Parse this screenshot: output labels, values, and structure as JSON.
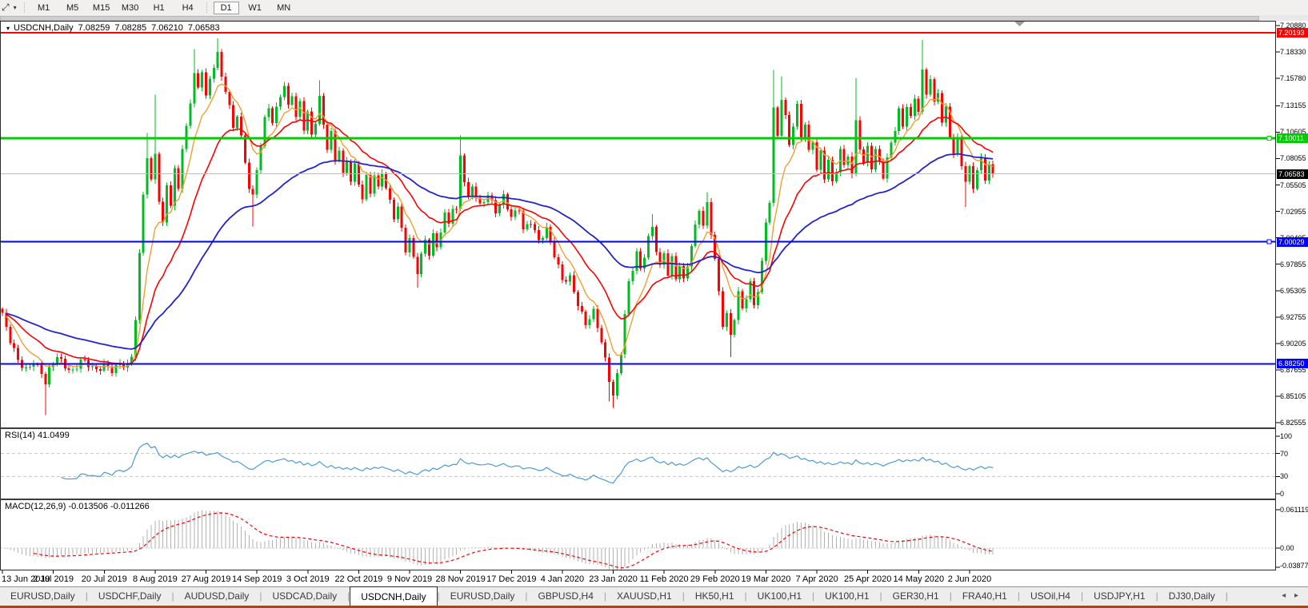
{
  "icons": {
    "tool": "⤢",
    "dropdown": "▾",
    "title_marker": "▾",
    "tab_prev": "◂",
    "tab_next": "▸"
  },
  "toolbar": {
    "timeframes": [
      {
        "label": "M1",
        "active": false
      },
      {
        "label": "M5",
        "active": false
      },
      {
        "label": "M15",
        "active": false
      },
      {
        "label": "M30",
        "active": false
      },
      {
        "label": "H1",
        "active": false
      },
      {
        "label": "H4",
        "active": false
      },
      {
        "label": "D1",
        "active": true,
        "group_start": true
      },
      {
        "label": "W1",
        "active": false
      },
      {
        "label": "MN",
        "active": false
      }
    ]
  },
  "chart_header": {
    "symbol_title": "USDCNH,Daily",
    "open": "7.08259",
    "high": "7.08285",
    "low": "7.06210",
    "close": "7.06583"
  },
  "price_axis": {
    "ticks": [
      "7.20880",
      "7.18330",
      "7.15780",
      "7.13155",
      "7.10605",
      "7.08055",
      "7.05505",
      "7.02955",
      "7.00405",
      "6.97855",
      "6.95305",
      "6.92755",
      "6.90205",
      "6.87655",
      "6.85105",
      "6.82555"
    ]
  },
  "price_tags": [
    {
      "label": "7.20193",
      "bg": "#ff0000"
    },
    {
      "label": "7.10011",
      "bg": "#00cc00"
    },
    {
      "label": "7.06583",
      "bg": "#000000"
    },
    {
      "label": "7.00029",
      "bg": "#0000ff"
    },
    {
      "label": "6.88250",
      "bg": "#0000ff"
    }
  ],
  "hlines": [
    {
      "price": 7.20193,
      "color": "#ff0000",
      "w": 2,
      "handle": false
    },
    {
      "price": 7.10011,
      "color": "#00cc00",
      "w": 3,
      "handle": true
    },
    {
      "price": 7.06583,
      "color": "#bdbdbd",
      "w": 1,
      "handle": false
    },
    {
      "price": 7.00029,
      "color": "#0000ff",
      "w": 2,
      "handle": true
    },
    {
      "price": 6.8825,
      "color": "#0000ff",
      "w": 2,
      "handle": false
    }
  ],
  "rsi_pane": {
    "label": "RSI(14) 41.0499",
    "line_color": "#4d9ad9",
    "level_color": "#c4c4c4",
    "axis": [
      {
        "label": "100",
        "value": 100
      },
      {
        "label": "70",
        "value": 70
      },
      {
        "label": "30",
        "value": 30
      },
      {
        "label": "0",
        "value": 0
      }
    ],
    "levels": [
      70,
      30
    ]
  },
  "macd_pane": {
    "label": "MACD(12,26,9) -0.013506 -0.011266",
    "hist_color": "#b2b2b2",
    "signal_color": "#ff0000",
    "axis": [
      {
        "label": "0.061119",
        "value": 0.061119
      },
      {
        "label": "0.00",
        "value": 0
      },
      {
        "label": "-0.03877",
        "value": -0.03877
      }
    ]
  },
  "date_axis": {
    "labels": [
      "13 Jun 2019",
      "2 Jul 2019",
      "20 Jul 2019",
      "8 Aug 2019",
      "27 Aug 2019",
      "14 Sep 2019",
      "3 Oct 2019",
      "22 Oct 2019",
      "9 Nov 2019",
      "28 Nov 2019",
      "17 Dec 2019",
      "4 Jan 2020",
      "23 Jan 2020",
      "11 Feb 2020",
      "29 Feb 2020",
      "19 Mar 2020",
      "7 Apr 2020",
      "25 Apr 2020",
      "14 May 2020",
      "2 Jun 2020"
    ]
  },
  "tabs": {
    "separator": "|",
    "items": [
      {
        "label": "EURUSD,Daily",
        "active": false
      },
      {
        "label": "USDCHF,Daily",
        "active": false
      },
      {
        "label": "AUDUSD,Daily",
        "active": false
      },
      {
        "label": "USDCAD,Daily",
        "active": false
      },
      {
        "label": "USDCNH,Daily",
        "active": true
      },
      {
        "label": "EURUSD,Daily",
        "active": false
      },
      {
        "label": "GBPUSD,H4",
        "active": false
      },
      {
        "label": "XAUUSD,H1",
        "active": false
      },
      {
        "label": "HK50,H1",
        "active": false
      },
      {
        "label": "UK100,H1",
        "active": false
      },
      {
        "label": "UK100,H1",
        "active": false
      },
      {
        "label": "GER30,H1",
        "active": false
      },
      {
        "label": "FRA40,H1",
        "active": false
      },
      {
        "label": "USOil,H4",
        "active": false
      },
      {
        "label": "USDJPY,H1",
        "active": false
      },
      {
        "label": "DJ30,Daily",
        "active": false
      }
    ]
  },
  "style": {
    "up_color": "#00bb22",
    "down_color": "#ff0000",
    "pane_border": "#2b2b2b"
  },
  "chart_data": {
    "type": "candlestick",
    "symbol": "USDCNH",
    "timeframe": "Daily",
    "title": "USDCNH,Daily",
    "current_ohlc": {
      "open": 7.08259,
      "high": 7.08285,
      "low": 7.0621,
      "close": 7.06583
    },
    "ylim": [
      6.818,
      7.212
    ],
    "x_range": [
      "13 Jun 2019",
      "12 Jun 2020"
    ],
    "bars": 254,
    "last_close": 7.06583,
    "horizontal_levels": [
      7.20193,
      7.10011,
      7.06583,
      7.00029,
      6.8825
    ],
    "price_waypoints": [
      [
        0,
        6.928
      ],
      [
        2,
        6.905
      ],
      [
        4,
        6.888
      ],
      [
        6,
        6.878
      ],
      [
        8,
        6.884
      ],
      [
        10,
        6.872
      ],
      [
        11,
        6.862
      ],
      [
        12,
        6.875
      ],
      [
        14,
        6.89
      ],
      [
        16,
        6.882
      ],
      [
        18,
        6.876
      ],
      [
        20,
        6.886
      ],
      [
        22,
        6.88
      ],
      [
        24,
        6.874
      ],
      [
        26,
        6.882
      ],
      [
        28,
        6.878
      ],
      [
        30,
        6.884
      ],
      [
        32,
        6.88
      ],
      [
        33,
        6.888
      ],
      [
        34,
        6.925
      ],
      [
        35,
        6.985
      ],
      [
        36,
        7.045
      ],
      [
        37,
        7.082
      ],
      [
        38,
        7.058
      ],
      [
        39,
        7.088
      ],
      [
        40,
        7.042
      ],
      [
        41,
        7.018
      ],
      [
        42,
        7.058
      ],
      [
        43,
        7.036
      ],
      [
        44,
        7.068
      ],
      [
        45,
        7.052
      ],
      [
        46,
        7.088
      ],
      [
        47,
        7.108
      ],
      [
        48,
        7.135
      ],
      [
        49,
        7.162
      ],
      [
        50,
        7.148
      ],
      [
        51,
        7.168
      ],
      [
        52,
        7.142
      ],
      [
        53,
        7.158
      ],
      [
        54,
        7.172
      ],
      [
        55,
        7.182
      ],
      [
        56,
        7.158
      ],
      [
        57,
        7.146
      ],
      [
        58,
        7.128
      ],
      [
        59,
        7.108
      ],
      [
        60,
        7.122
      ],
      [
        61,
        7.1
      ],
      [
        62,
        7.078
      ],
      [
        63,
        7.055
      ],
      [
        64,
        7.045
      ],
      [
        65,
        7.072
      ],
      [
        66,
        7.095
      ],
      [
        67,
        7.118
      ],
      [
        68,
        7.13
      ],
      [
        69,
        7.114
      ],
      [
        70,
        7.126
      ],
      [
        71,
        7.14
      ],
      [
        72,
        7.15
      ],
      [
        73,
        7.13
      ],
      [
        74,
        7.144
      ],
      [
        75,
        7.122
      ],
      [
        76,
        7.136
      ],
      [
        77,
        7.112
      ],
      [
        78,
        7.126
      ],
      [
        79,
        7.102
      ],
      [
        80,
        7.116
      ],
      [
        81,
        7.138
      ],
      [
        82,
        7.11
      ],
      [
        83,
        7.09
      ],
      [
        84,
        7.104
      ],
      [
        85,
        7.078
      ],
      [
        86,
        7.092
      ],
      [
        87,
        7.066
      ],
      [
        88,
        7.08
      ],
      [
        89,
        7.062
      ],
      [
        90,
        7.074
      ],
      [
        91,
        7.056
      ],
      [
        92,
        7.042
      ],
      [
        93,
        7.06
      ],
      [
        94,
        7.046
      ],
      [
        95,
        7.064
      ],
      [
        96,
        7.05
      ],
      [
        97,
        7.068
      ],
      [
        98,
        7.054
      ],
      [
        99,
        7.04
      ],
      [
        100,
        7.026
      ],
      [
        101,
        7.036
      ],
      [
        102,
        7.012
      ],
      [
        103,
        6.992
      ],
      [
        104,
        7.002
      ],
      [
        105,
        6.982
      ],
      [
        106,
        6.97
      ],
      [
        107,
        6.986
      ],
      [
        108,
        7.0
      ],
      [
        109,
        6.99
      ],
      [
        110,
        7.008
      ],
      [
        111,
        6.996
      ],
      [
        112,
        7.014
      ],
      [
        113,
        7.028
      ],
      [
        114,
        7.018
      ],
      [
        115,
        7.034
      ],
      [
        116,
        7.028
      ],
      [
        117,
        7.082
      ],
      [
        118,
        7.058
      ],
      [
        119,
        7.04
      ],
      [
        120,
        7.054
      ],
      [
        122,
        7.036
      ],
      [
        124,
        7.048
      ],
      [
        126,
        7.03
      ],
      [
        128,
        7.042
      ],
      [
        130,
        7.022
      ],
      [
        132,
        7.032
      ],
      [
        133,
        7.012
      ],
      [
        135,
        7.022
      ],
      [
        137,
        7.002
      ],
      [
        139,
        7.012
      ],
      [
        141,
        6.986
      ],
      [
        143,
        6.962
      ],
      [
        145,
        6.966
      ],
      [
        147,
        6.942
      ],
      [
        149,
        6.922
      ],
      [
        151,
        6.932
      ],
      [
        153,
        6.902
      ],
      [
        155,
        6.866
      ],
      [
        156,
        6.852
      ],
      [
        157,
        6.872
      ],
      [
        158,
        6.896
      ],
      [
        159,
        6.932
      ],
      [
        160,
        6.962
      ],
      [
        161,
        6.976
      ],
      [
        162,
        6.99
      ],
      [
        163,
        6.972
      ],
      [
        164,
        6.986
      ],
      [
        165,
        7.002
      ],
      [
        166,
        7.012
      ],
      [
        167,
        6.992
      ],
      [
        168,
        6.976
      ],
      [
        169,
        6.99
      ],
      [
        170,
        6.972
      ],
      [
        171,
        6.986
      ],
      [
        172,
        6.966
      ],
      [
        173,
        6.98
      ],
      [
        174,
        6.962
      ],
      [
        175,
        6.976
      ],
      [
        176,
        6.996
      ],
      [
        177,
        7.012
      ],
      [
        178,
        7.03
      ],
      [
        179,
        7.016
      ],
      [
        180,
        7.036
      ],
      [
        181,
        7.01
      ],
      [
        182,
        6.986
      ],
      [
        183,
        6.952
      ],
      [
        184,
        6.922
      ],
      [
        185,
        6.932
      ],
      [
        186,
        6.908
      ],
      [
        187,
        6.926
      ],
      [
        188,
        6.95
      ],
      [
        189,
        6.932
      ],
      [
        190,
        6.946
      ],
      [
        191,
        6.96
      ],
      [
        192,
        6.938
      ],
      [
        193,
        6.956
      ],
      [
        194,
        6.982
      ],
      [
        195,
        7.02
      ],
      [
        196,
        7.042
      ],
      [
        197,
        7.128
      ],
      [
        198,
        7.102
      ],
      [
        199,
        7.138
      ],
      [
        200,
        7.118
      ],
      [
        201,
        7.092
      ],
      [
        202,
        7.112
      ],
      [
        203,
        7.13
      ],
      [
        204,
        7.102
      ],
      [
        205,
        7.116
      ],
      [
        206,
        7.088
      ],
      [
        207,
        7.1
      ],
      [
        208,
        7.072
      ],
      [
        209,
        7.086
      ],
      [
        210,
        7.062
      ],
      [
        211,
        7.078
      ],
      [
        212,
        7.054
      ],
      [
        213,
        7.068
      ],
      [
        214,
        7.088
      ],
      [
        215,
        7.072
      ],
      [
        216,
        7.086
      ],
      [
        217,
        7.066
      ],
      [
        218,
        7.118
      ],
      [
        219,
        7.094
      ],
      [
        220,
        7.076
      ],
      [
        221,
        7.092
      ],
      [
        222,
        7.072
      ],
      [
        223,
        7.086
      ],
      [
        224,
        7.076
      ],
      [
        225,
        7.062
      ],
      [
        226,
        7.078
      ],
      [
        227,
        7.096
      ],
      [
        228,
        7.11
      ],
      [
        229,
        7.128
      ],
      [
        230,
        7.114
      ],
      [
        231,
        7.134
      ],
      [
        232,
        7.12
      ],
      [
        233,
        7.14
      ],
      [
        234,
        7.126
      ],
      [
        235,
        7.162
      ],
      [
        236,
        7.142
      ],
      [
        237,
        7.156
      ],
      [
        238,
        7.132
      ],
      [
        239,
        7.146
      ],
      [
        240,
        7.116
      ],
      [
        241,
        7.13
      ],
      [
        242,
        7.106
      ],
      [
        243,
        7.086
      ],
      [
        244,
        7.1
      ],
      [
        245,
        7.076
      ],
      [
        246,
        7.056
      ],
      [
        247,
        7.07
      ],
      [
        248,
        7.052
      ],
      [
        249,
        7.066
      ],
      [
        250,
        7.08
      ],
      [
        251,
        7.062
      ],
      [
        252,
        7.074
      ],
      [
        253,
        7.0658
      ]
    ],
    "wick_overrides": {
      "11": {
        "low": 6.833
      },
      "37": {
        "high": 7.105
      },
      "39": {
        "high": 7.142
      },
      "49": {
        "high": 7.186
      },
      "55": {
        "high": 7.1965
      },
      "64": {
        "low": 7.015
      },
      "81": {
        "high": 7.156
      },
      "106": {
        "low": 6.956
      },
      "117": {
        "high": 7.103
      },
      "155": {
        "low": 6.846
      },
      "156": {
        "low": 6.84
      },
      "166": {
        "high": 7.027
      },
      "180": {
        "high": 7.048
      },
      "186": {
        "low": 6.889
      },
      "197": {
        "high": 7.166
      },
      "199": {
        "high": 7.16
      },
      "218": {
        "high": 7.158
      },
      "235": {
        "high": 7.195
      },
      "246": {
        "low": 7.034
      }
    },
    "moving_averages": [
      {
        "name": "ma-fast-orange",
        "period": 8,
        "color": "#f0a030",
        "width": 1.4
      },
      {
        "name": "ma-mid-red",
        "period": 20,
        "color": "#ff0000",
        "width": 1.6
      },
      {
        "name": "ma-slow-blue",
        "period": 55,
        "color": "#2323cc",
        "width": 1.8
      }
    ],
    "indicators": {
      "rsi": {
        "period": 14,
        "current": 41.0499,
        "levels": [
          70,
          30
        ],
        "range": [
          0,
          100
        ]
      },
      "macd": {
        "fast": 12,
        "slow": 26,
        "signal": 9,
        "current_macd": -0.013506,
        "current_signal": -0.011266,
        "axis_max": 0.061119,
        "axis_min": -0.03877
      }
    }
  }
}
